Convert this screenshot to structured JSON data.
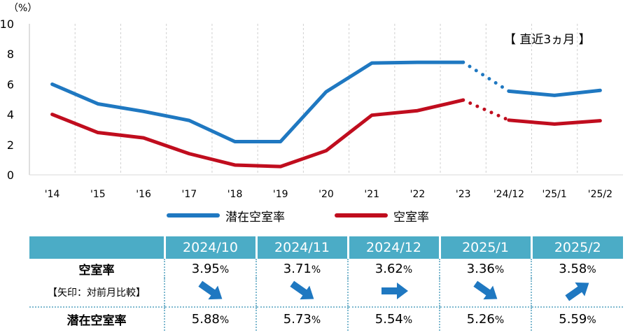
{
  "chart_data": {
    "type": "line",
    "unit_label": "（%）",
    "annotation": "【 直近3ヵ月 】",
    "categories": [
      "'14",
      "'15",
      "'16",
      "'17",
      "'18",
      "'19",
      "'20",
      "'21",
      "'22",
      "'23",
      "'24/12",
      "'25/1",
      "'25/2"
    ],
    "ylim": [
      0,
      10
    ],
    "yticks": [
      "0",
      "2",
      "4",
      "6",
      "8",
      "10"
    ],
    "grid": "vertical dashed",
    "series": [
      {
        "name": "潜在空室率",
        "color": "#1f78c1",
        "values": [
          6.0,
          4.7,
          4.2,
          3.6,
          2.2,
          2.2,
          5.5,
          7.4,
          7.45,
          7.45,
          5.54,
          5.26,
          5.59
        ]
      },
      {
        "name": "空室率",
        "color": "#c00d1e",
        "values": [
          4.0,
          2.8,
          2.45,
          1.4,
          0.65,
          0.55,
          1.6,
          3.95,
          4.25,
          4.95,
          3.62,
          3.36,
          3.58
        ]
      }
    ],
    "dotted_segment": [
      "'23",
      "'24/12"
    ],
    "legend_position": "bottom"
  },
  "table": {
    "columns": [
      "2024/10",
      "2024/11",
      "2024/12",
      "2025/1",
      "2025/2"
    ],
    "rows": {
      "vacancy": {
        "label": "空室率",
        "values": [
          "3.95",
          "3.71",
          "3.62",
          "3.36",
          "3.58"
        ]
      },
      "arrows": {
        "label": "【矢印：対前月比較】",
        "directions": [
          "down",
          "down",
          "flat",
          "down",
          "up"
        ]
      },
      "latent": {
        "label": "潜在空室率",
        "values": [
          "5.88",
          "5.73",
          "5.54",
          "5.26",
          "5.59"
        ]
      }
    },
    "unit": "%"
  }
}
